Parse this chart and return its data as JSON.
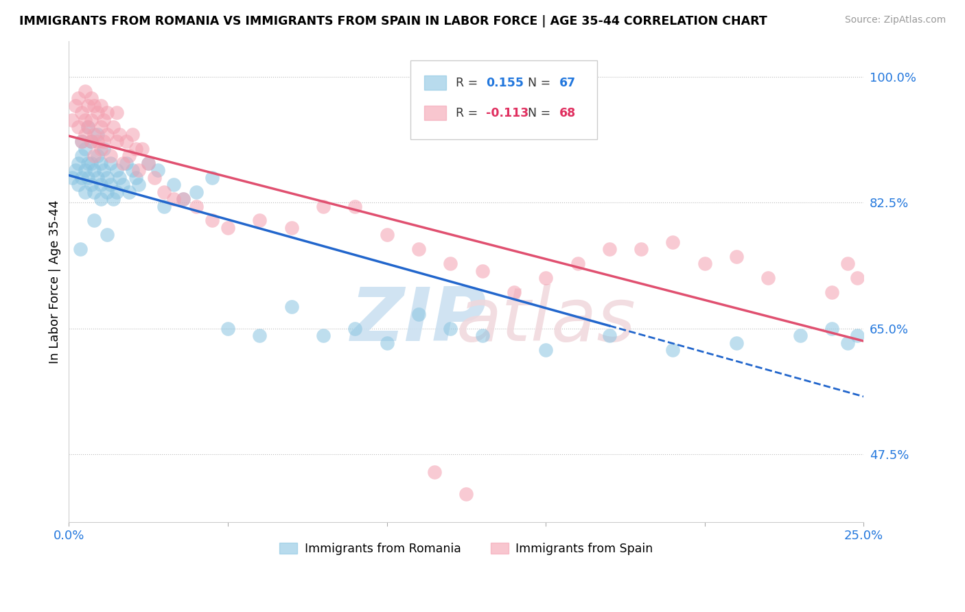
{
  "title": "IMMIGRANTS FROM ROMANIA VS IMMIGRANTS FROM SPAIN IN LABOR FORCE | AGE 35-44 CORRELATION CHART",
  "source": "Source: ZipAtlas.com",
  "ylabel_left": "In Labor Force | Age 35-44",
  "legend_labels": [
    "Immigrants from Romania",
    "Immigrants from Spain"
  ],
  "romania_R": 0.155,
  "romania_N": 67,
  "spain_R": -0.113,
  "spain_N": 68,
  "xlim": [
    0.0,
    0.25
  ],
  "ylim": [
    0.38,
    1.05
  ],
  "right_yticks": [
    0.475,
    0.65,
    0.825,
    1.0
  ],
  "right_yticklabels": [
    "47.5%",
    "65.0%",
    "82.5%",
    "100.0%"
  ],
  "color_romania": "#89c4e1",
  "color_spain": "#f4a0b0",
  "trendline_romania": "#2266cc",
  "trendline_spain": "#e05070",
  "romania_x": [
    0.001,
    0.002,
    0.003,
    0.003,
    0.004,
    0.004,
    0.004,
    0.005,
    0.005,
    0.005,
    0.006,
    0.006,
    0.006,
    0.007,
    0.007,
    0.007,
    0.008,
    0.008,
    0.009,
    0.009,
    0.009,
    0.01,
    0.01,
    0.01,
    0.011,
    0.011,
    0.012,
    0.012,
    0.013,
    0.013,
    0.014,
    0.015,
    0.015,
    0.016,
    0.017,
    0.018,
    0.019,
    0.02,
    0.021,
    0.022,
    0.025,
    0.028,
    0.03,
    0.033,
    0.036,
    0.04,
    0.045,
    0.05,
    0.06,
    0.07,
    0.08,
    0.09,
    0.1,
    0.11,
    0.12,
    0.13,
    0.15,
    0.17,
    0.19,
    0.21,
    0.23,
    0.24,
    0.245,
    0.248,
    0.0035,
    0.008,
    0.012
  ],
  "romania_y": [
    0.86,
    0.87,
    0.88,
    0.85,
    0.89,
    0.86,
    0.91,
    0.84,
    0.9,
    0.87,
    0.88,
    0.86,
    0.93,
    0.85,
    0.88,
    0.91,
    0.84,
    0.87,
    0.86,
    0.89,
    0.92,
    0.85,
    0.88,
    0.83,
    0.87,
    0.9,
    0.86,
    0.84,
    0.88,
    0.85,
    0.83,
    0.87,
    0.84,
    0.86,
    0.85,
    0.88,
    0.84,
    0.87,
    0.86,
    0.85,
    0.88,
    0.87,
    0.82,
    0.85,
    0.83,
    0.84,
    0.86,
    0.65,
    0.64,
    0.68,
    0.64,
    0.65,
    0.63,
    0.67,
    0.65,
    0.64,
    0.62,
    0.64,
    0.62,
    0.63,
    0.64,
    0.65,
    0.63,
    0.64,
    0.76,
    0.8,
    0.78
  ],
  "spain_x": [
    0.001,
    0.002,
    0.003,
    0.003,
    0.004,
    0.004,
    0.005,
    0.005,
    0.005,
    0.006,
    0.006,
    0.007,
    0.007,
    0.007,
    0.008,
    0.008,
    0.008,
    0.009,
    0.009,
    0.01,
    0.01,
    0.01,
    0.011,
    0.011,
    0.012,
    0.012,
    0.013,
    0.014,
    0.015,
    0.015,
    0.016,
    0.017,
    0.018,
    0.019,
    0.02,
    0.021,
    0.022,
    0.023,
    0.025,
    0.027,
    0.03,
    0.033,
    0.036,
    0.04,
    0.045,
    0.05,
    0.06,
    0.07,
    0.08,
    0.09,
    0.1,
    0.11,
    0.12,
    0.13,
    0.14,
    0.15,
    0.16,
    0.18,
    0.2,
    0.22,
    0.24,
    0.245,
    0.248,
    0.17,
    0.19,
    0.21,
    0.115,
    0.125
  ],
  "spain_y": [
    0.94,
    0.96,
    0.93,
    0.97,
    0.95,
    0.91,
    0.94,
    0.98,
    0.92,
    0.96,
    0.93,
    0.97,
    0.91,
    0.94,
    0.96,
    0.92,
    0.89,
    0.95,
    0.91,
    0.93,
    0.96,
    0.9,
    0.94,
    0.91,
    0.95,
    0.92,
    0.89,
    0.93,
    0.91,
    0.95,
    0.92,
    0.88,
    0.91,
    0.89,
    0.92,
    0.9,
    0.87,
    0.9,
    0.88,
    0.86,
    0.84,
    0.83,
    0.83,
    0.82,
    0.8,
    0.79,
    0.8,
    0.79,
    0.82,
    0.82,
    0.78,
    0.76,
    0.74,
    0.73,
    0.7,
    0.72,
    0.74,
    0.76,
    0.74,
    0.72,
    0.7,
    0.74,
    0.72,
    0.76,
    0.77,
    0.75,
    0.45,
    0.42
  ],
  "watermark_zip_color": "#c8dff0",
  "watermark_atlas_color": "#f0d8dc"
}
